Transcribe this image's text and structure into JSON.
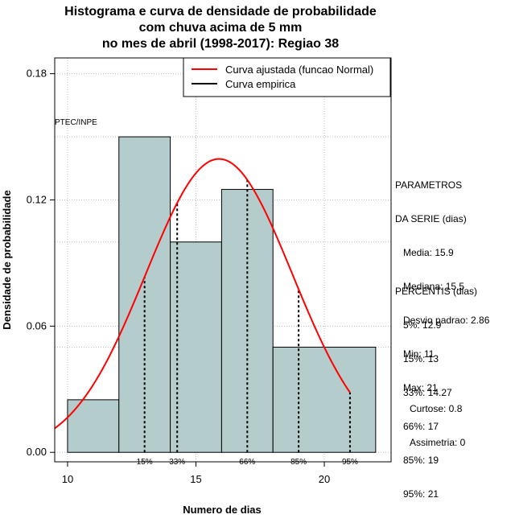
{
  "chart_data": {
    "type": "bar",
    "title_lines": [
      "Histograma e curva de densidade de probabilidade",
      "com chuva acima de 5 mm",
      "no mes de abril (1998-2017): Regiao 38"
    ],
    "xlabel": "Numero de dias",
    "ylabel": "Densidade de probabilidade",
    "xlim": [
      9.5,
      22.6
    ],
    "ylim": [
      -0.0045,
      0.1875
    ],
    "x_ticks": [
      10,
      15,
      20
    ],
    "y_ticks": [
      0.0,
      0.06,
      0.12,
      0.18
    ],
    "y_tick_labels": [
      "0.00",
      "0.06",
      "0.12",
      "0.18"
    ],
    "bins": [
      {
        "x0": 10,
        "x1": 12,
        "density": 0.025
      },
      {
        "x0": 12,
        "x1": 14,
        "density": 0.15
      },
      {
        "x0": 14,
        "x1": 16,
        "density": 0.1
      },
      {
        "x0": 16,
        "x1": 18,
        "density": 0.125
      },
      {
        "x0": 18,
        "x1": 22,
        "density": 0.05
      }
    ],
    "fitted_curve": {
      "name": "Curva ajustada (funcao Normal)",
      "mean": 15.9,
      "sd": 2.86,
      "x_range": [
        9.5,
        21
      ],
      "color": "#ff0000"
    },
    "legend": [
      {
        "label": "Curva ajustada (funcao Normal)",
        "color": "#ff0000"
      },
      {
        "label": "Curva empirica",
        "color": "#000000"
      }
    ],
    "percentile_lines": [
      {
        "label": "15%",
        "x": 13
      },
      {
        "label": "33%",
        "x": 14.27
      },
      {
        "label": "66%",
        "x": 17
      },
      {
        "label": "85%",
        "x": 19
      },
      {
        "label": "95%",
        "x": 21
      }
    ],
    "watermark": "PTEC/INPE",
    "colors": {
      "bar_fill": "#b5cccc",
      "grid": "#bbbbbb"
    }
  },
  "stats": {
    "params_lines": [
      "PARAMETROS",
      "DA SERIE (dias)",
      "   Media: 15.9",
      "   Mediana: 15.5",
      "   Desvio padrao: 2.86",
      "   Min: 11",
      "   Max: 21"
    ],
    "percentis_lines": [
      "PERCENTIS (dias)",
      "   5%: 12.9",
      "   15%: 13",
      "   33%: 14.27",
      "   66%: 17",
      "   85%: 19",
      "   95%: 21"
    ],
    "shape_lines": [
      "Curtose: 0.8",
      "Assimetria: 0"
    ]
  }
}
